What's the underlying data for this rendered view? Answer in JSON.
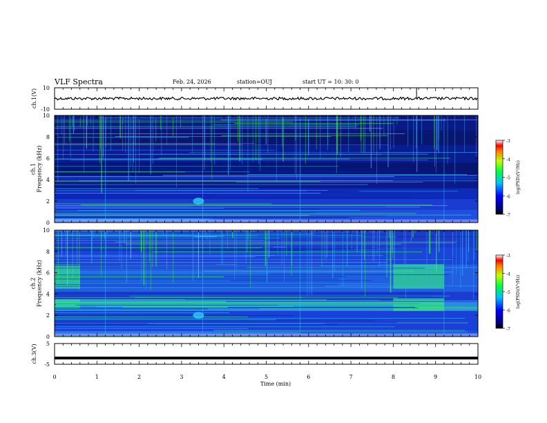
{
  "header": {
    "title": "VLF Spectra",
    "date": "Feb. 24, 2026",
    "station": "station=OUJ",
    "start": "start  UT =   10: 30: 0"
  },
  "chart_data": [
    {
      "type": "line",
      "name": "ch1-waveform",
      "ylabel": "ch.1(V)",
      "ylim": [
        -10,
        10
      ],
      "yticks": [
        "10",
        "-10"
      ],
      "xlim": [
        0,
        10
      ],
      "level": 0,
      "spike_x": 8.55
    },
    {
      "type": "heatmap",
      "name": "ch1-spectrogram",
      "ylabel": "ch.1\nFrequency (kHz)",
      "ylabel_lines": [
        "ch.1",
        "Frequency (kHz)"
      ],
      "ylim": [
        0,
        10
      ],
      "yticks": [
        "0",
        "2",
        "4",
        "6",
        "8",
        "10"
      ],
      "xlim": [
        0,
        10
      ],
      "colorbar": {
        "label": "log(PSD)(V²/Hz)",
        "ticks": [
          "-3",
          "-4",
          "-5",
          "-6",
          "-7"
        ],
        "range": [
          -7,
          -3
        ]
      }
    },
    {
      "type": "heatmap",
      "name": "ch2-spectrogram",
      "ylabel": "ch.2\nFrequency (kHz)",
      "ylabel_lines": [
        "ch.2",
        "Frequency (kHz)"
      ],
      "ylim": [
        0,
        10
      ],
      "yticks": [
        "0",
        "2",
        "4",
        "6",
        "8",
        "10"
      ],
      "xlim": [
        0,
        10
      ],
      "colorbar": {
        "label": "log(PSD)(V²/Hz)",
        "ticks": [
          "-3",
          "-4",
          "-5",
          "-6",
          "-7"
        ],
        "range": [
          -7,
          -3
        ]
      }
    },
    {
      "type": "line",
      "name": "ch3-waveform",
      "ylabel": "ch.3(V)",
      "ylim": [
        -5,
        5
      ],
      "yticks": [
        "5",
        "-5"
      ],
      "xlim": [
        0,
        10
      ],
      "level": -2
    }
  ],
  "xaxis": {
    "label": "Time (min)",
    "ticks": [
      "0",
      "1",
      "2",
      "3",
      "4",
      "5",
      "6",
      "7",
      "8",
      "9",
      "10"
    ]
  },
  "colors": {
    "low": "#000080",
    "mid": "#1e90ff",
    "high": "#00ff00",
    "top": "#ff0000"
  }
}
